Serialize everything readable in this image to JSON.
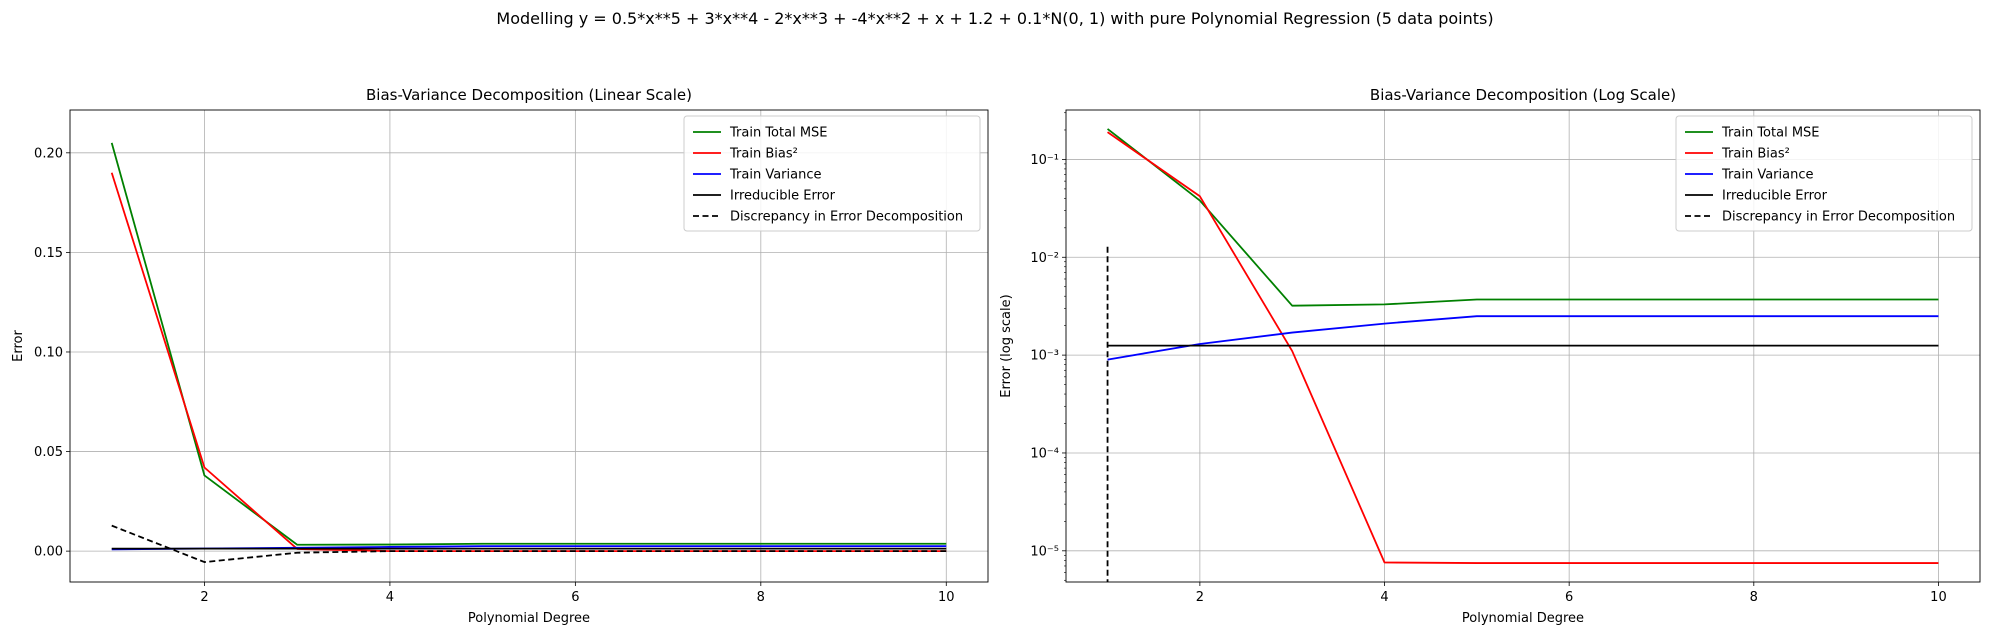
{
  "figure": {
    "suptitle": "Modelling y = 0.5*x**5 + 3*x**4 - 2*x**3 + -4*x**2 + x + 1.2 + 0.1*N(0, 1) with pure Polynomial Regression (5 data points)"
  },
  "chart_data": [
    {
      "type": "line",
      "title": "Bias-Variance Decomposition (Linear Scale)",
      "xlabel": "Polynomial Degree",
      "ylabel": "Error",
      "yscale": "linear",
      "xlim": [
        0.55,
        10.45
      ],
      "ylim": [
        -0.0155,
        0.2215
      ],
      "xticks": [
        2,
        4,
        6,
        8,
        10
      ],
      "xtick_labels": [
        "2",
        "4",
        "6",
        "8",
        "10"
      ],
      "yticks": [
        0.0,
        0.05,
        0.1,
        0.15,
        0.2
      ],
      "ytick_labels": [
        "0.00",
        "0.05",
        "0.10",
        "0.15",
        "0.20"
      ],
      "grid": true,
      "legend_position": "top-right",
      "x": [
        1,
        2,
        3,
        4,
        5,
        6,
        7,
        8,
        9,
        10
      ],
      "series": [
        {
          "name": "Train Total MSE",
          "color": "#008000",
          "dash": "solid",
          "values": [
            0.205,
            0.038,
            0.0032,
            0.0033,
            0.0037,
            0.0037,
            0.0037,
            0.0037,
            0.0037,
            0.0037
          ]
        },
        {
          "name": "Train Bias²",
          "color": "#ff0000",
          "dash": "solid",
          "values": [
            0.19,
            0.042,
            0.0011,
            7.6e-06,
            7.5e-06,
            7.5e-06,
            7.5e-06,
            7.5e-06,
            7.5e-06,
            7.5e-06
          ]
        },
        {
          "name": "Train Variance",
          "color": "#0000ff",
          "dash": "solid",
          "values": [
            0.0009,
            0.0013,
            0.0017,
            0.0021,
            0.0025,
            0.0025,
            0.0025,
            0.0025,
            0.0025,
            0.0025
          ]
        },
        {
          "name": "Irreducible Error",
          "color": "#000000",
          "dash": "solid",
          "values": [
            0.00125,
            0.00125,
            0.00125,
            0.00125,
            0.00125,
            0.00125,
            0.00125,
            0.00125,
            0.00125,
            0.00125
          ]
        },
        {
          "name": "Discrepancy in Error Decomposition",
          "color": "#000000",
          "dash": "dashed",
          "values": [
            0.0128,
            -0.0055,
            -0.0008,
            0.0,
            0.0,
            0.0,
            0.0,
            0.0,
            0.0,
            0.0
          ]
        }
      ]
    },
    {
      "type": "line",
      "title": "Bias-Variance Decomposition (Log Scale)",
      "xlabel": "Polynomial Degree",
      "ylabel": "Error (log scale)",
      "yscale": "log",
      "xlim": [
        0.55,
        10.45
      ],
      "ylim": [
        4.8e-06,
        0.32
      ],
      "xticks": [
        2,
        4,
        6,
        8,
        10
      ],
      "xtick_labels": [
        "2",
        "4",
        "6",
        "8",
        "10"
      ],
      "yticks": [
        1e-05,
        0.0001,
        0.001,
        0.01,
        0.1
      ],
      "ytick_labels": [
        "10⁻⁵",
        "10⁻⁴",
        "10⁻³",
        "10⁻²",
        "10⁻¹"
      ],
      "grid": true,
      "legend_position": "top-right",
      "x": [
        1,
        2,
        3,
        4,
        5,
        6,
        7,
        8,
        9,
        10
      ],
      "series": [
        {
          "name": "Train Total MSE",
          "color": "#008000",
          "dash": "solid",
          "values": [
            0.205,
            0.038,
            0.0032,
            0.0033,
            0.0037,
            0.0037,
            0.0037,
            0.0037,
            0.0037,
            0.0037
          ]
        },
        {
          "name": "Train Bias²",
          "color": "#ff0000",
          "dash": "solid",
          "values": [
            0.19,
            0.042,
            0.0011,
            7.6e-06,
            7.5e-06,
            7.5e-06,
            7.5e-06,
            7.5e-06,
            7.5e-06,
            7.5e-06
          ]
        },
        {
          "name": "Train Variance",
          "color": "#0000ff",
          "dash": "solid",
          "values": [
            0.0009,
            0.0013,
            0.0017,
            0.0021,
            0.0025,
            0.0025,
            0.0025,
            0.0025,
            0.0025,
            0.0025
          ]
        },
        {
          "name": "Irreducible Error",
          "color": "#000000",
          "dash": "solid",
          "values": [
            0.00125,
            0.00125,
            0.00125,
            0.00125,
            0.00125,
            0.00125,
            0.00125,
            0.00125,
            0.00125,
            0.00125
          ]
        },
        {
          "name": "Discrepancy in Error Decomposition",
          "color": "#000000",
          "dash": "dashed",
          "x": [
            1,
            1
          ],
          "values": [
            0.0128,
            4.8e-06
          ]
        }
      ]
    }
  ]
}
